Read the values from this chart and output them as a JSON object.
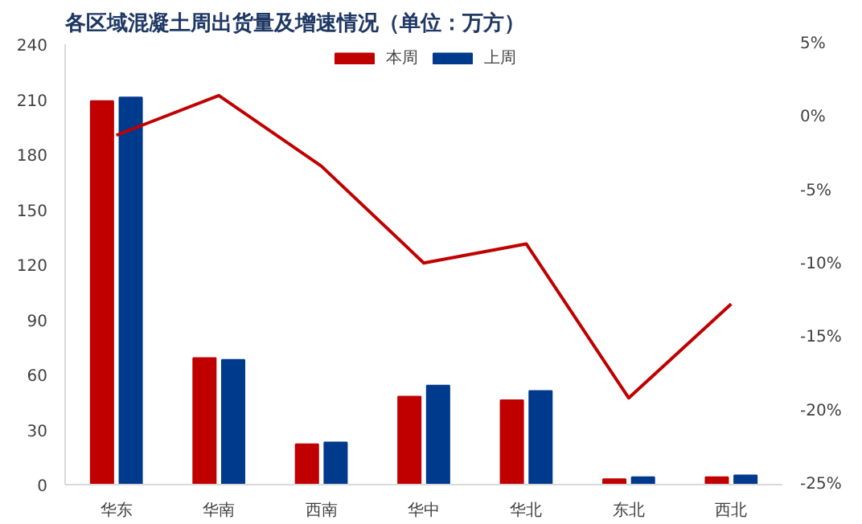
{
  "chart_data": {
    "type": "bar",
    "title": "各区域混凝土周出货量及增速情况（单位：万方）",
    "categories": [
      "华东",
      "华南",
      "西南",
      "华中",
      "华北",
      "东北",
      "西北"
    ],
    "series": [
      {
        "name": "本周",
        "color": "#c00000",
        "values": [
          209,
          69,
          22,
          48,
          46,
          3,
          4
        ]
      },
      {
        "name": "上周",
        "color": "#003a8c",
        "values": [
          211,
          68,
          23,
          54,
          51,
          4,
          5
        ]
      },
      {
        "type": "line",
        "axis": "y2",
        "color": "#c00000",
        "values": [
          -1.2,
          1.5,
          -3.3,
          -9.9,
          -8.6,
          -19.1,
          -12.7
        ]
      }
    ],
    "ylim": [
      0,
      240
    ],
    "yticks": [
      0,
      30,
      60,
      90,
      120,
      150,
      180,
      210,
      240
    ],
    "y2lim": [
      -25,
      5
    ],
    "y2ticks": [
      {
        "value": -25,
        "label": "-25%"
      },
      {
        "value": -20,
        "label": "-20%"
      },
      {
        "value": -15,
        "label": "-15%"
      },
      {
        "value": -10,
        "label": "-10%"
      },
      {
        "value": -5,
        "label": "-5%"
      },
      {
        "value": 0,
        "label": "0%"
      },
      {
        "value": 5,
        "label": "5%"
      }
    ],
    "grid": false,
    "legend": "top",
    "marker": "none",
    "line_style": "solid"
  }
}
